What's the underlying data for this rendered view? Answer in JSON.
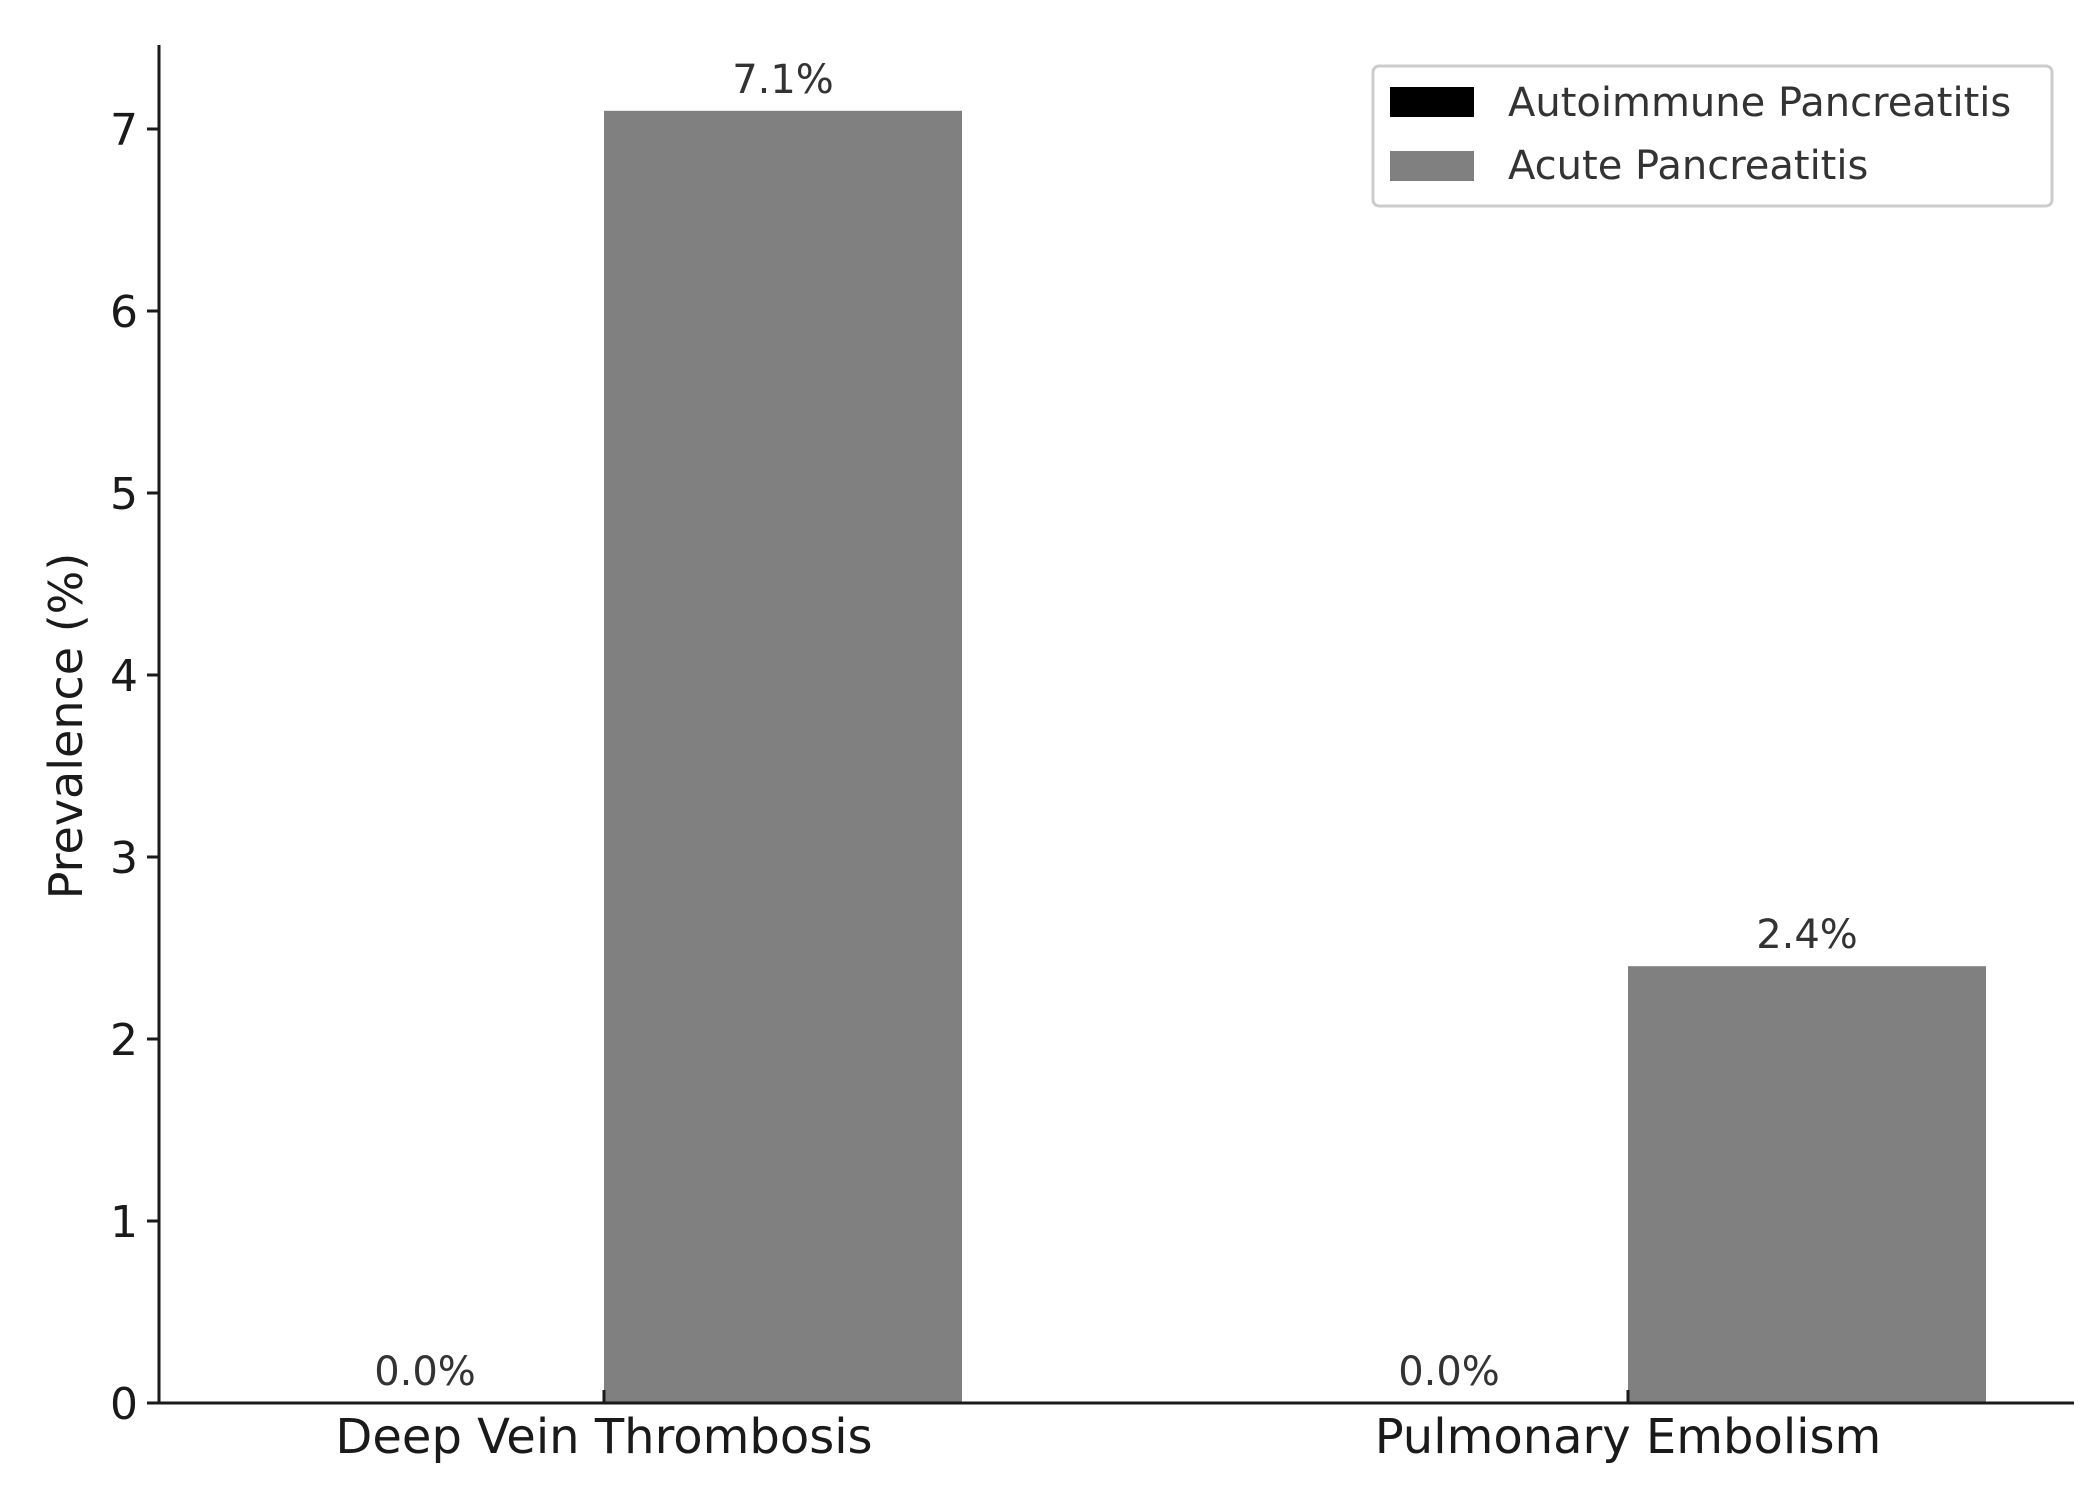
{
  "chart_data": {
    "type": "bar",
    "categories": [
      "Deep Vein Thrombosis",
      "Pulmonary Embolism"
    ],
    "series": [
      {
        "name": "Autoimmune Pancreatitis",
        "values": [
          0.0,
          0.0
        ],
        "color": "#000000"
      },
      {
        "name": "Acute Pancreatitis",
        "values": [
          7.1,
          2.4
        ],
        "color": "#808080"
      }
    ],
    "data_labels": [
      [
        "0.0%",
        "0.0%"
      ],
      [
        "7.1%",
        "2.4%"
      ]
    ],
    "title": "",
    "xlabel": "",
    "ylabel": "Prevalence (%)",
    "ylim": [
      0,
      7.45
    ],
    "yticks": [
      "0",
      "1",
      "2",
      "3",
      "4",
      "5",
      "6",
      "7"
    ],
    "grid": false,
    "legend_position": "top-right"
  }
}
